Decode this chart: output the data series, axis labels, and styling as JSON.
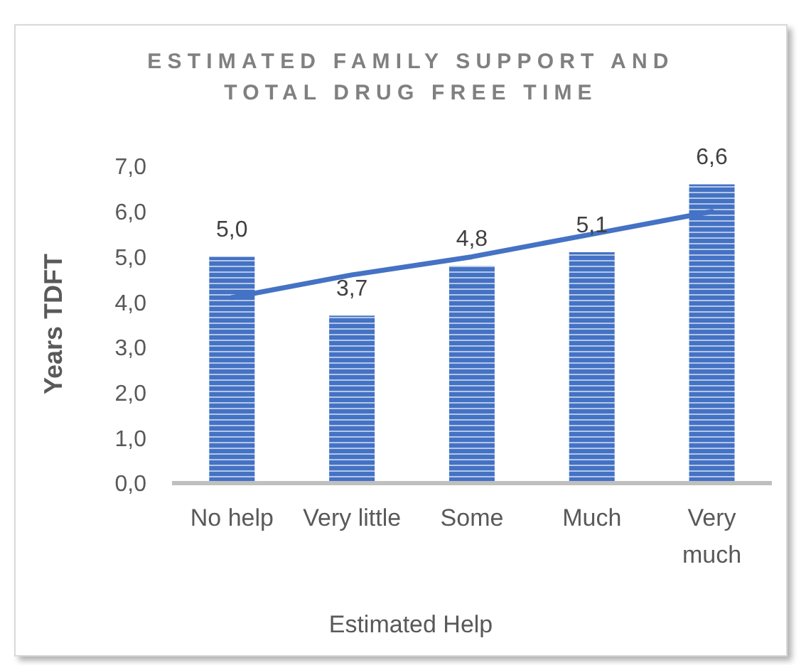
{
  "chart_data": {
    "type": "bar",
    "title": "ESTIMATED FAMILY SUPPORT AND TOTAL DRUG FREE TIME",
    "xlabel": "Estimated Help",
    "ylabel": "Years TDFT",
    "categories": [
      "No help",
      "Very little",
      "Some",
      "Much",
      "Very much"
    ],
    "series": [
      {
        "color": "#4472c4",
        "values": [
          5.0,
          3.7,
          4.8,
          5.1,
          6.6
        ],
        "value_labels": [
          "5,0",
          "3,7",
          "4,8",
          "5,1",
          "6,6"
        ]
      },
      {
        "type": "line",
        "color": "#4472c4",
        "values": [
          4.1,
          4.6,
          5.0,
          5.5,
          6.0
        ],
        "marker": "none"
      }
    ],
    "ylim": [
      0,
      7
    ],
    "yticks": [
      {
        "value": 0,
        "label": "0,0"
      },
      {
        "value": 1,
        "label": "1,0"
      },
      {
        "value": 2,
        "label": "2,0"
      },
      {
        "value": 3,
        "label": "3,0"
      },
      {
        "value": 4,
        "label": "4,0"
      },
      {
        "value": 5,
        "label": "5,0"
      },
      {
        "value": 6,
        "label": "6,0"
      },
      {
        "value": 7,
        "label": "7,0"
      }
    ]
  }
}
